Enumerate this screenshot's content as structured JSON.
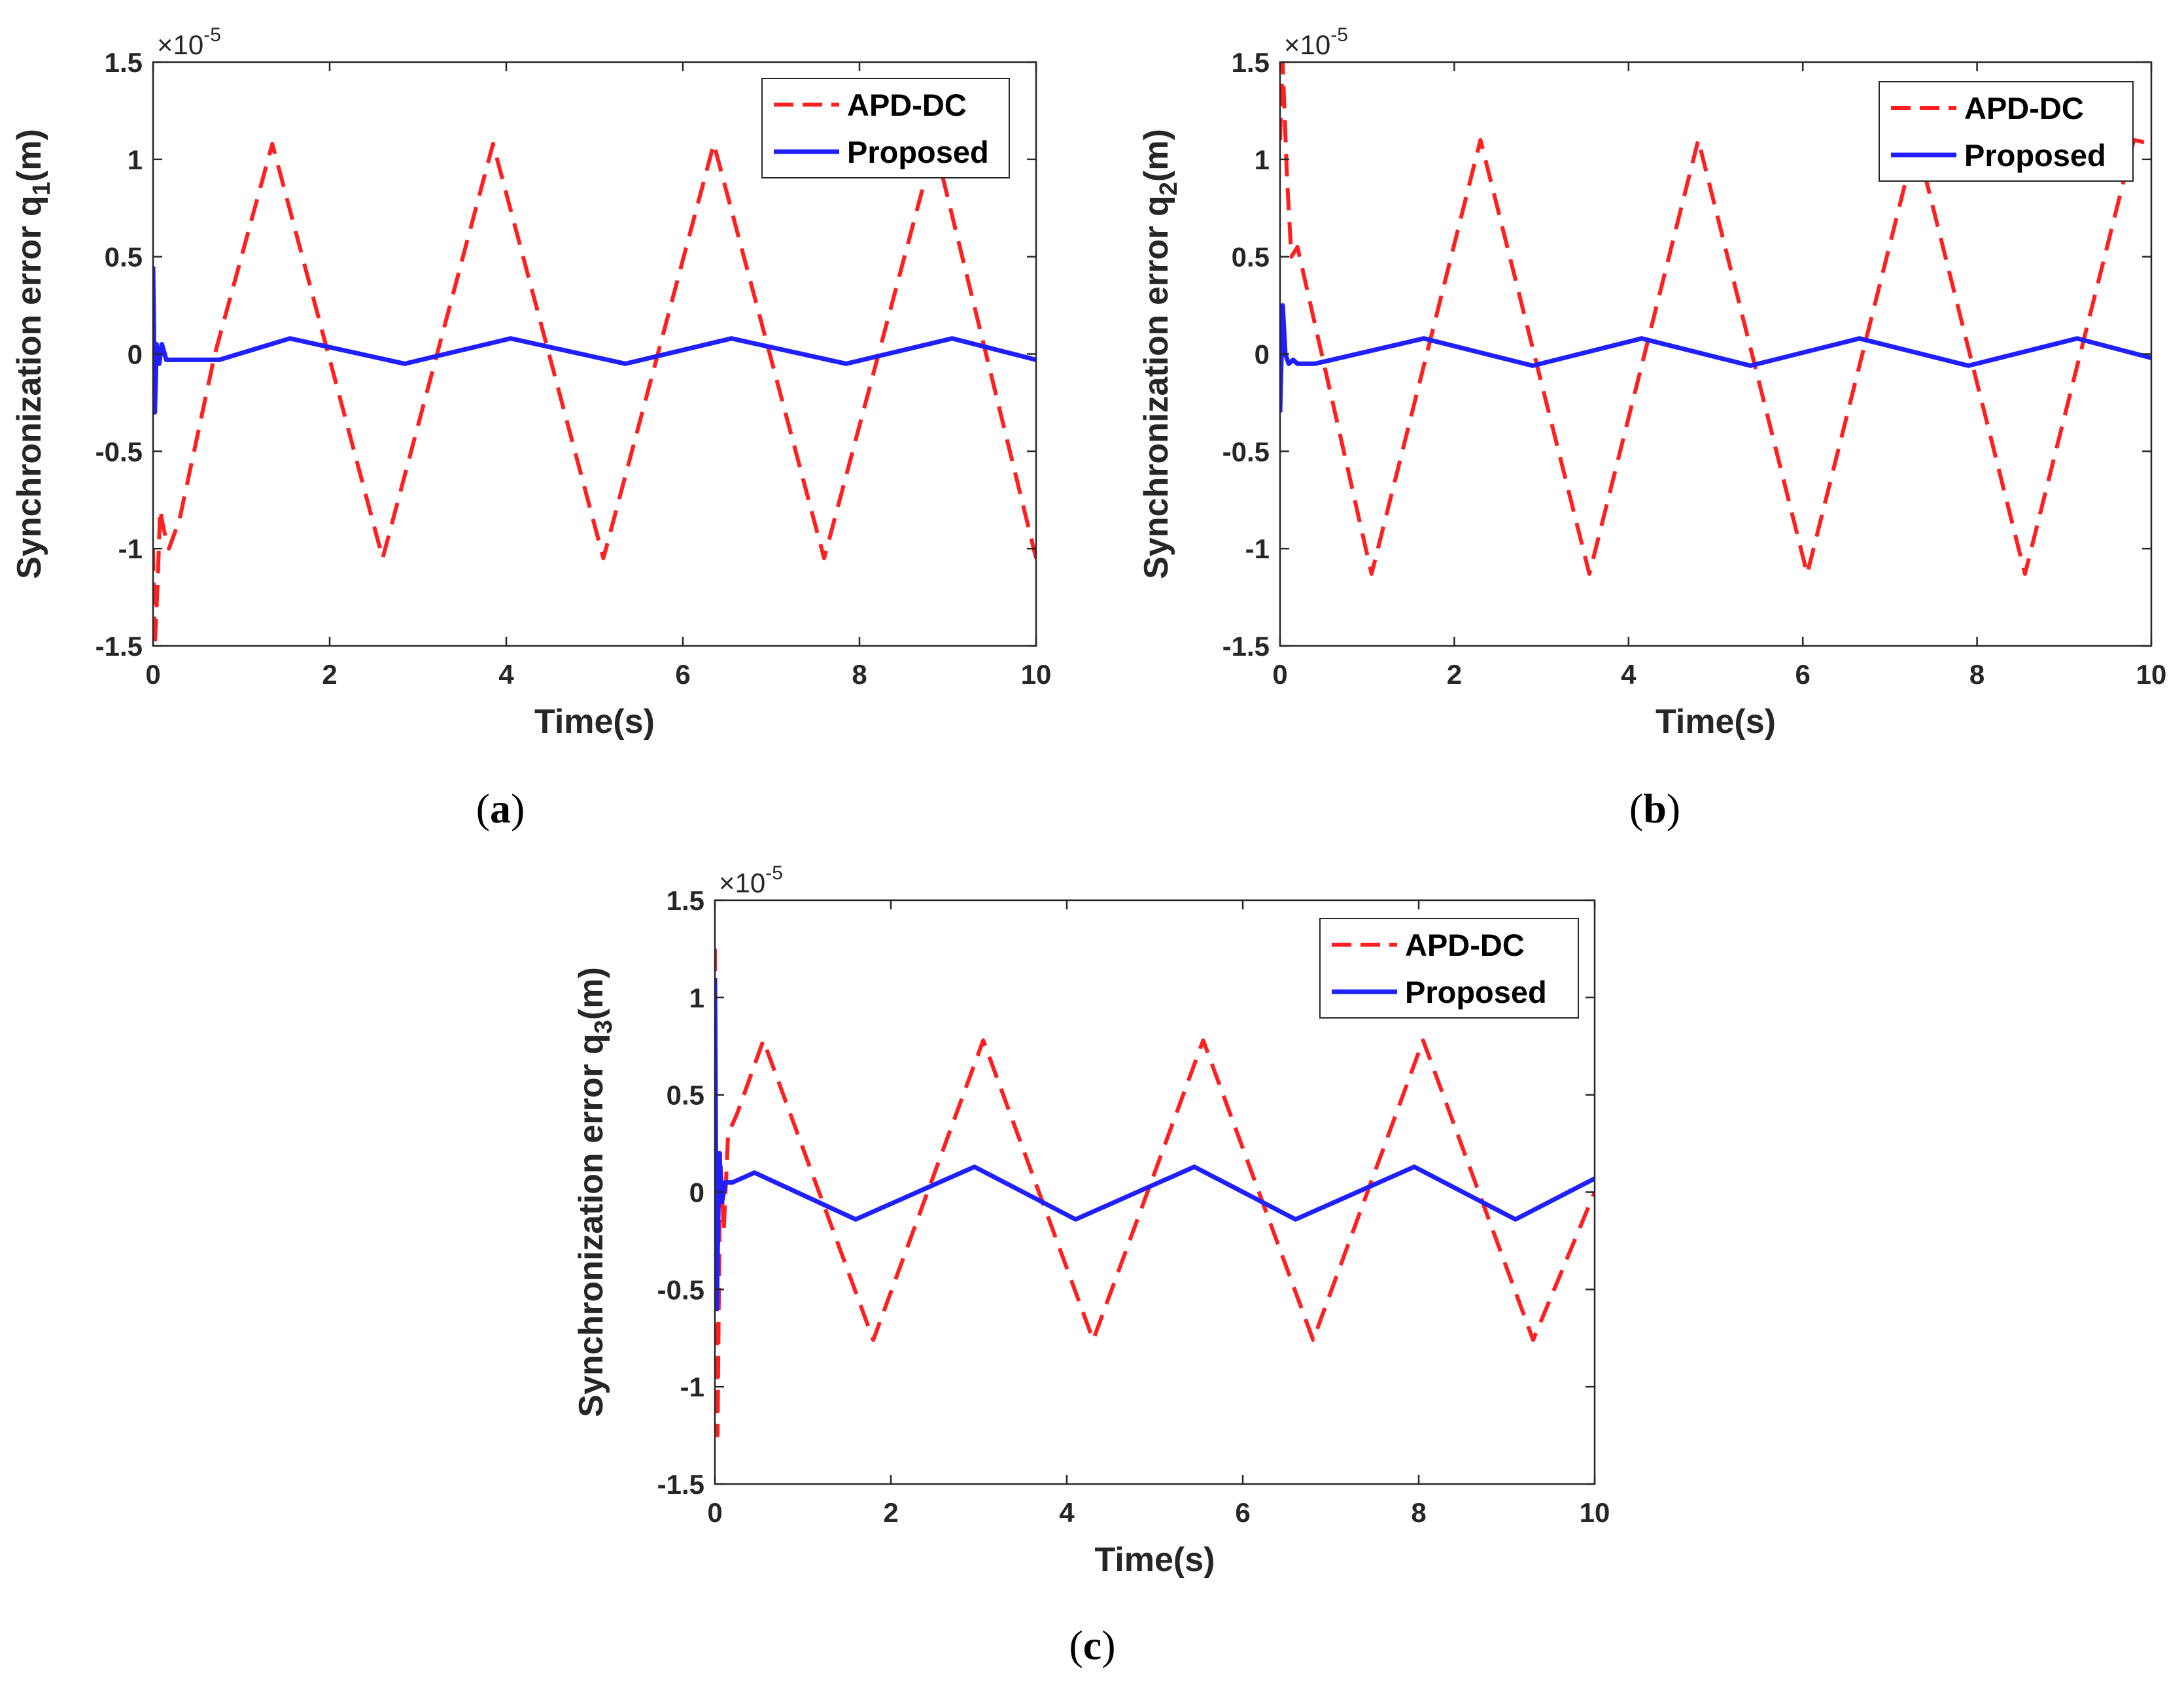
{
  "figure": {
    "panels_caption": [
      "(a)",
      "(b)",
      "(c)"
    ]
  },
  "colors": {
    "apd_dc": "#ff1f1f",
    "proposed": "#1f1fff",
    "axes": "#262626"
  },
  "chart_data": [
    {
      "id": "a",
      "type": "line",
      "caption": "(a)",
      "caption_letter": "a",
      "xlabel": "Time(s)",
      "ylabel_prefix": "Synchronization error q",
      "ylabel_sub": "1",
      "ylabel_suffix": "(m)",
      "y_multiplier": "×10",
      "y_multiplier_exp": "-5",
      "xlim": [
        0,
        10
      ],
      "ylim": [
        -1.5,
        1.5
      ],
      "xticks": [
        0,
        2,
        4,
        6,
        8,
        10
      ],
      "xtick_labels": [
        "0",
        "2",
        "4",
        "6",
        "8",
        "10"
      ],
      "yticks": [
        -1.5,
        -1,
        -0.5,
        0,
        0.5,
        1,
        1.5
      ],
      "ytick_labels": [
        "-1.5",
        "-1",
        "-0.5",
        "0",
        "0.5",
        "1",
        "1.5"
      ],
      "legend": {
        "position": "top-right",
        "entries": [
          "APD-DC",
          "Proposed"
        ]
      },
      "series": [
        {
          "name": "APD-DC",
          "style": "dashed",
          "color": "#ff1f1f",
          "x": [
            0,
            0.02,
            0.05,
            0.08,
            0.12,
            0.18,
            0.3,
            0.7,
            1.35,
            2.6,
            3.85,
            5.1,
            6.35,
            7.6,
            8.85,
            10
          ],
          "y": [
            -1.0,
            -1.5,
            -1.2,
            -0.8,
            -0.9,
            -1.0,
            -0.85,
            0.0,
            1.08,
            -1.05,
            1.08,
            -1.05,
            1.08,
            -1.05,
            1.08,
            -1.05
          ]
        },
        {
          "name": "Proposed",
          "style": "solid",
          "color": "#1f1fff",
          "x": [
            0,
            0.02,
            0.04,
            0.07,
            0.1,
            0.15,
            0.3,
            0.75,
            1.55,
            2.85,
            4.05,
            5.35,
            6.55,
            7.85,
            9.05,
            10
          ],
          "y": [
            0.45,
            -0.3,
            0.05,
            -0.05,
            0.05,
            -0.03,
            -0.03,
            -0.03,
            0.08,
            -0.05,
            0.08,
            -0.05,
            0.08,
            -0.05,
            0.08,
            -0.03
          ]
        }
      ]
    },
    {
      "id": "b",
      "type": "line",
      "caption": "(b)",
      "caption_letter": "b",
      "xlabel": "Time(s)",
      "ylabel_prefix": "Synchronization error q",
      "ylabel_sub": "2",
      "ylabel_suffix": "(m)",
      "y_multiplier": "×10",
      "y_multiplier_exp": "-5",
      "xlim": [
        0,
        10
      ],
      "ylim": [
        -1.5,
        1.5
      ],
      "xticks": [
        0,
        2,
        4,
        6,
        8,
        10
      ],
      "xtick_labels": [
        "0",
        "2",
        "4",
        "6",
        "8",
        "10"
      ],
      "yticks": [
        -1.5,
        -1,
        -0.5,
        0,
        0.5,
        1,
        1.5
      ],
      "ytick_labels": [
        "-1.5",
        "-1",
        "-0.5",
        "0",
        "0.5",
        "1",
        "1.5"
      ],
      "legend": {
        "position": "top-right",
        "entries": [
          "APD-DC",
          "Proposed"
        ]
      },
      "series": [
        {
          "name": "APD-DC",
          "style": "dashed",
          "color": "#ff1f1f",
          "x": [
            0,
            0.03,
            0.08,
            0.13,
            0.2,
            1.05,
            2.3,
            3.55,
            4.8,
            6.05,
            7.3,
            8.55,
            9.8,
            10
          ],
          "y": [
            1.1,
            1.5,
            0.9,
            0.5,
            0.55,
            -1.13,
            1.1,
            -1.13,
            1.1,
            -1.13,
            1.1,
            -1.13,
            1.1,
            1.08
          ]
        },
        {
          "name": "Proposed",
          "style": "solid",
          "color": "#1f1fff",
          "x": [
            0,
            0.03,
            0.06,
            0.1,
            0.15,
            0.2,
            0.4,
            1.65,
            2.9,
            4.15,
            5.4,
            6.65,
            7.9,
            9.15,
            10
          ],
          "y": [
            -0.3,
            0.25,
            0.0,
            -0.05,
            -0.03,
            -0.05,
            -0.05,
            0.08,
            -0.06,
            0.08,
            -0.06,
            0.08,
            -0.06,
            0.08,
            -0.02
          ]
        }
      ]
    },
    {
      "id": "c",
      "type": "line",
      "caption": "(c)",
      "caption_letter": "c",
      "xlabel": "Time(s)",
      "ylabel_prefix": "Synchronization error q",
      "ylabel_sub": "3",
      "ylabel_suffix": "(m)",
      "y_multiplier": "×10",
      "y_multiplier_exp": "-5",
      "xlim": [
        0,
        10
      ],
      "ylim": [
        -1.5,
        1.5
      ],
      "xticks": [
        0,
        2,
        4,
        6,
        8,
        10
      ],
      "xtick_labels": [
        "0",
        "2",
        "4",
        "6",
        "8",
        "10"
      ],
      "yticks": [
        -1.5,
        -1,
        -0.5,
        0,
        0.5,
        1,
        1.5
      ],
      "ytick_labels": [
        "-1.5",
        "-1",
        "-0.5",
        "0",
        "0.5",
        "1",
        "1.5"
      ],
      "legend": {
        "position": "top-right",
        "entries": [
          "APD-DC",
          "Proposed"
        ]
      },
      "series": [
        {
          "name": "APD-DC",
          "style": "dashed",
          "color": "#ff1f1f",
          "x": [
            0,
            0.03,
            0.06,
            0.1,
            0.15,
            0.25,
            0.55,
            1.8,
            3.05,
            4.3,
            5.55,
            6.8,
            8.05,
            9.3,
            10
          ],
          "y": [
            1.25,
            -1.25,
            0.2,
            -0.2,
            0.3,
            0.4,
            0.78,
            -0.76,
            0.78,
            -0.76,
            0.78,
            -0.76,
            0.78,
            -0.76,
            0.0
          ]
        },
        {
          "name": "Proposed",
          "style": "solid",
          "color": "#1f1fff",
          "x": [
            0,
            0.02,
            0.05,
            0.08,
            0.12,
            0.2,
            0.45,
            1.6,
            2.95,
            4.1,
            5.45,
            6.6,
            7.95,
            9.1,
            10
          ],
          "y": [
            1.1,
            -0.6,
            0.2,
            -0.05,
            0.05,
            0.05,
            0.1,
            -0.14,
            0.13,
            -0.14,
            0.13,
            -0.14,
            0.13,
            -0.14,
            0.07
          ]
        }
      ]
    }
  ]
}
